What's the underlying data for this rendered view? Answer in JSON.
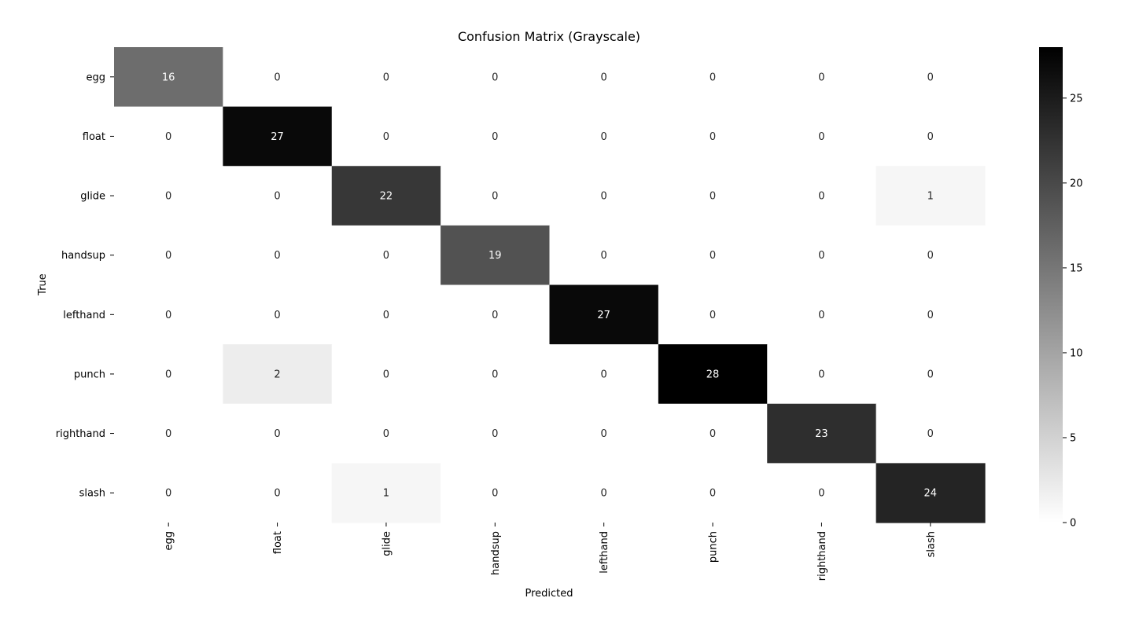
{
  "chart_data": {
    "type": "heatmap",
    "title": "Confusion Matrix (Grayscale)",
    "xlabel": "Predicted",
    "ylabel": "True",
    "x_categories": [
      "egg",
      "float",
      "glide",
      "handsup",
      "lefthand",
      "punch",
      "righthand",
      "slash"
    ],
    "y_categories": [
      "egg",
      "float",
      "glide",
      "handsup",
      "lefthand",
      "punch",
      "righthand",
      "slash"
    ],
    "values": [
      [
        16,
        0,
        0,
        0,
        0,
        0,
        0,
        0
      ],
      [
        0,
        27,
        0,
        0,
        0,
        0,
        0,
        0
      ],
      [
        0,
        0,
        22,
        0,
        0,
        0,
        0,
        1
      ],
      [
        0,
        0,
        0,
        19,
        0,
        0,
        0,
        0
      ],
      [
        0,
        0,
        0,
        0,
        27,
        0,
        0,
        0
      ],
      [
        0,
        2,
        0,
        0,
        0,
        28,
        0,
        0
      ],
      [
        0,
        0,
        0,
        0,
        0,
        0,
        23,
        0
      ],
      [
        0,
        0,
        1,
        0,
        0,
        0,
        0,
        24
      ]
    ],
    "colorscale": "Greys",
    "color_range": [
      0,
      28
    ],
    "colorbar_ticks": [
      0,
      5,
      10,
      15,
      20,
      25
    ],
    "grid": false
  }
}
